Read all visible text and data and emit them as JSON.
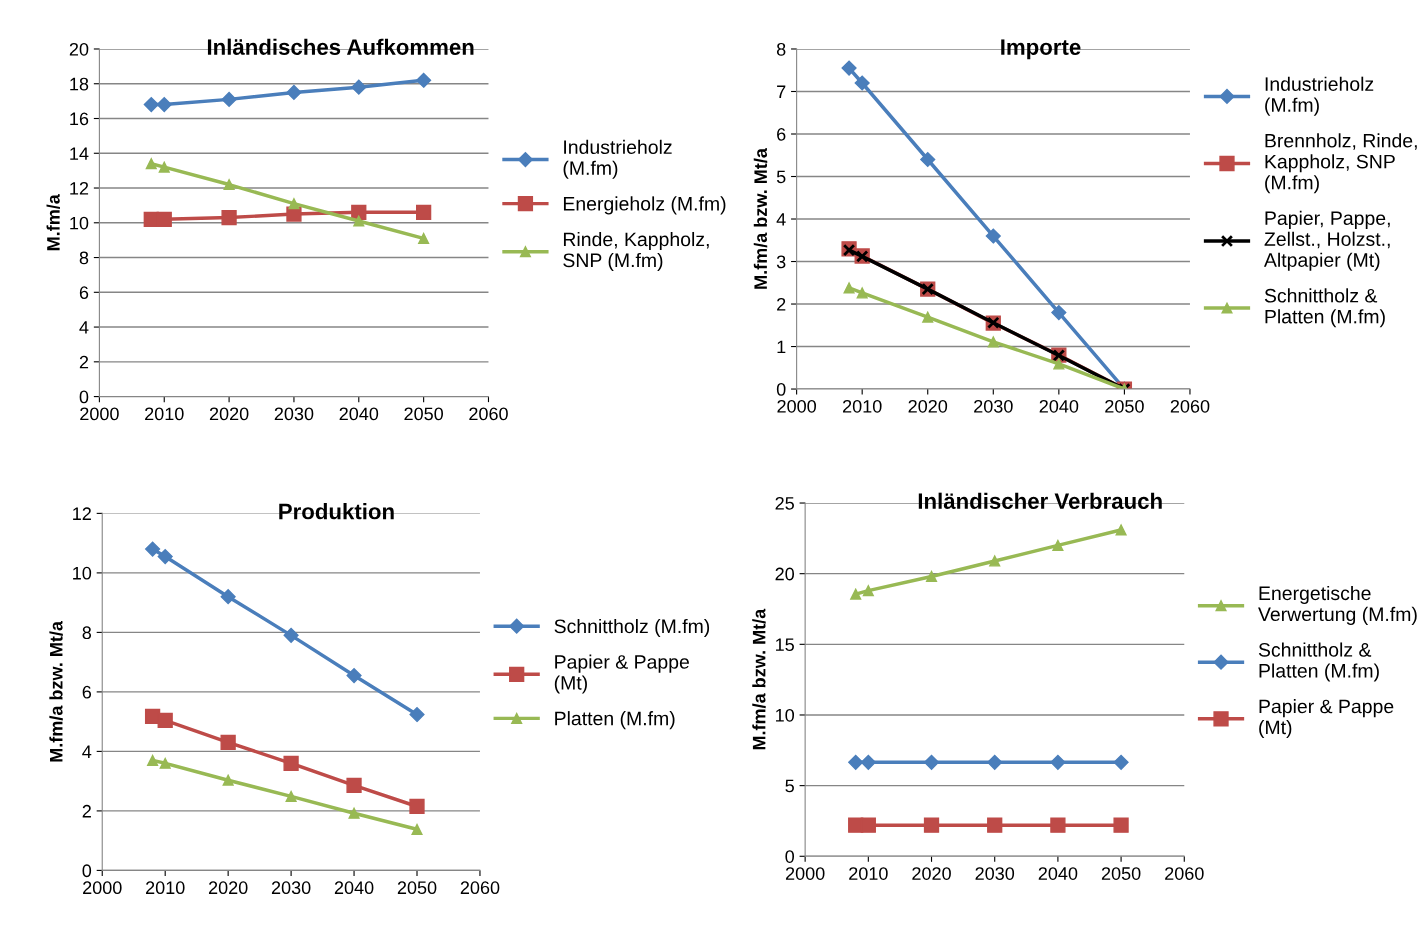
{
  "chart_data": [
    {
      "type": "line",
      "title": "Inländisches Aufkommen",
      "ylabel": "M.fm/a",
      "x": [
        2008,
        2010,
        2020,
        2030,
        2040,
        2050
      ],
      "xlim": [
        2000,
        2060
      ],
      "xticks": [
        2000,
        2010,
        2020,
        2030,
        2040,
        2050,
        2060
      ],
      "ylim": [
        0,
        20
      ],
      "yticks": [
        0,
        2,
        4,
        6,
        8,
        10,
        12,
        14,
        16,
        18,
        20
      ],
      "grid": "y",
      "legend": "right",
      "series": [
        {
          "name": "Industrieholz (M.fm)",
          "color": "#4a7ebb",
          "marker": "diamond",
          "values": [
            16.8,
            16.8,
            17.1,
            17.5,
            17.8,
            18.2
          ]
        },
        {
          "name": "Energieholz (M.fm)",
          "color": "#be4b48",
          "marker": "square",
          "values": [
            10.2,
            10.2,
            10.3,
            10.5,
            10.6,
            10.6
          ]
        },
        {
          "name": "Rinde, Kappholz, SNP (M.fm)",
          "color": "#98b954",
          "marker": "triangle",
          "values": [
            13.4,
            13.2,
            12.2,
            11.1,
            10.1,
            9.1
          ]
        }
      ]
    },
    {
      "type": "line",
      "title": "Importe",
      "ylabel": "M.fm/a bzw. Mt/a",
      "x": [
        2008,
        2010,
        2020,
        2030,
        2040,
        2050
      ],
      "xlim": [
        2000,
        2060
      ],
      "xticks": [
        2000,
        2010,
        2020,
        2030,
        2040,
        2050,
        2060
      ],
      "ylim": [
        0,
        8
      ],
      "yticks": [
        0,
        1,
        2,
        3,
        4,
        5,
        6,
        7,
        8
      ],
      "grid": "y",
      "legend": "right",
      "series": [
        {
          "name": "Industrieholz (M.fm)",
          "color": "#4a7ebb",
          "marker": "diamond",
          "values": [
            7.55,
            7.2,
            5.4,
            3.6,
            1.8,
            0
          ]
        },
        {
          "name": "Brennholz, Rinde, Kappholz, SNP (M.fm)",
          "color": "#be4b48",
          "marker": "square",
          "values": [
            3.3,
            3.13,
            2.35,
            1.55,
            0.8,
            0
          ]
        },
        {
          "name": "Papier, Pappe, Zellst., Holzst., Altpapier (Mt)",
          "color": "#000000",
          "marker": "cross",
          "values": [
            3.27,
            3.12,
            2.35,
            1.56,
            0.79,
            0
          ]
        },
        {
          "name": "Schnittholz & Platten (M.fm)",
          "color": "#98b954",
          "marker": "triangle",
          "values": [
            2.38,
            2.26,
            1.69,
            1.11,
            0.59,
            0
          ]
        }
      ]
    },
    {
      "type": "line",
      "title": "Produktion",
      "ylabel": "M.fm/a bzw. Mt/a",
      "x": [
        2008,
        2010,
        2020,
        2030,
        2040,
        2050
      ],
      "xlim": [
        2000,
        2060
      ],
      "xticks": [
        2000,
        2010,
        2020,
        2030,
        2040,
        2050,
        2060
      ],
      "ylim": [
        0,
        12
      ],
      "yticks": [
        0,
        2,
        4,
        6,
        8,
        10,
        12
      ],
      "grid": "y",
      "legend": "right",
      "series": [
        {
          "name": "Schnittholz (M.fm)",
          "color": "#4a7ebb",
          "marker": "diamond",
          "values": [
            10.8,
            10.55,
            9.2,
            7.9,
            6.55,
            5.24
          ]
        },
        {
          "name": "Papier & Pappe (Mt)",
          "color": "#be4b48",
          "marker": "square",
          "values": [
            5.18,
            5.04,
            4.3,
            3.6,
            2.86,
            2.15
          ]
        },
        {
          "name": "Platten (M.fm)",
          "color": "#98b954",
          "marker": "triangle",
          "values": [
            3.7,
            3.6,
            3.03,
            2.49,
            1.92,
            1.38
          ]
        }
      ]
    },
    {
      "type": "line",
      "title": "Inländischer Verbrauch",
      "ylabel": "M.fm/a bzw. Mt/a",
      "x": [
        2008,
        2010,
        2020,
        2030,
        2040,
        2050
      ],
      "xlim": [
        2000,
        2060
      ],
      "xticks": [
        2000,
        2010,
        2020,
        2030,
        2040,
        2050,
        2060
      ],
      "ylim": [
        0,
        25
      ],
      "yticks": [
        0,
        5,
        10,
        15,
        20,
        25
      ],
      "grid": "y",
      "legend": "right",
      "series": [
        {
          "name": "Energetische Verwertung (M.fm)",
          "color": "#98b954",
          "marker": "triangle",
          "values": [
            18.55,
            18.8,
            19.8,
            20.9,
            22.0,
            23.1
          ]
        },
        {
          "name": "Schnittholz & Platten (M.fm)",
          "color": "#4a7ebb",
          "marker": "diamond",
          "values": [
            6.65,
            6.65,
            6.65,
            6.65,
            6.65,
            6.65
          ]
        },
        {
          "name": "Papier & Pappe (Mt)",
          "color": "#be4b48",
          "marker": "square",
          "values": [
            2.2,
            2.2,
            2.2,
            2.2,
            2.2,
            2.2
          ]
        }
      ]
    }
  ]
}
